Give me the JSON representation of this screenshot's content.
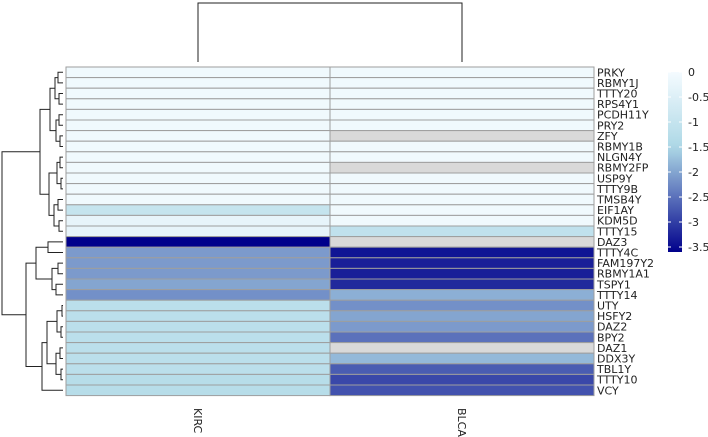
{
  "chart_data": {
    "type": "heatmap",
    "title": "",
    "columns": [
      "KIRC",
      "BLCA"
    ],
    "rows": [
      "PRKY",
      "RBMY1J",
      "TTTY20",
      "RPS4Y1",
      "PCDH11Y",
      "PRY2",
      "ZFY",
      "RBMY1B",
      "NLGN4Y",
      "RBMY2FP",
      "USP9Y",
      "TTTY9B",
      "TMSB4Y",
      "EIF1AY",
      "KDM5D",
      "TTTY15",
      "DAZ3",
      "TTTY4C",
      "FAM197Y2",
      "RBMY1A1",
      "TSPY1",
      "TTTY14",
      "UTY",
      "HSFY2",
      "DAZ2",
      "BPY2",
      "DAZ1",
      "DDX3Y",
      "TBL1Y",
      "TTTY10",
      "VCY"
    ],
    "values": [
      [
        -0.1,
        -0.1
      ],
      [
        -0.1,
        -0.1
      ],
      [
        -0.1,
        -0.1
      ],
      [
        -0.1,
        -0.1
      ],
      [
        -0.1,
        -0.1
      ],
      [
        -0.1,
        -0.1
      ],
      [
        -0.1,
        null
      ],
      [
        -0.1,
        -0.1
      ],
      [
        -0.1,
        -0.1
      ],
      [
        -0.1,
        null
      ],
      [
        -0.1,
        -0.1
      ],
      [
        -0.1,
        -0.1
      ],
      [
        -0.1,
        -0.1
      ],
      [
        -1.0,
        -0.1
      ],
      [
        -0.3,
        -0.1
      ],
      [
        -0.3,
        -1.1
      ],
      [
        -3.6,
        null
      ],
      [
        -2.1,
        -3.4
      ],
      [
        -2.1,
        -3.3
      ],
      [
        -2.1,
        -3.3
      ],
      [
        -2.0,
        -3.2
      ],
      [
        -2.2,
        -1.9
      ],
      [
        -1.2,
        -2.2
      ],
      [
        -1.2,
        -2.0
      ],
      [
        -1.2,
        -2.1
      ],
      [
        -1.2,
        -2.5
      ],
      [
        -1.2,
        null
      ],
      [
        -1.2,
        -1.8
      ],
      [
        -1.2,
        -2.7
      ],
      [
        -1.3,
        -2.9
      ],
      [
        -1.3,
        -2.8
      ]
    ],
    "missing_color": "#d9d9d9",
    "color_scale": {
      "min": -3.6,
      "max": 0,
      "low_color": "#00008b",
      "mid_color": "#add8e6",
      "high_color": "#f5fbff",
      "mid_value": -1.5
    },
    "legend": {
      "position": "right",
      "ticks": [
        "0",
        "-0.5",
        "-1",
        "-1.5",
        "-2",
        "-2.5",
        "-3",
        "-3.5"
      ],
      "tick_values": [
        0,
        -0.5,
        -1,
        -1.5,
        -2,
        -2.5,
        -3,
        -3.5
      ]
    },
    "cell_border_color": "#9e9e9e",
    "grid": false,
    "column_dendrogram": true,
    "row_dendrogram": true
  }
}
